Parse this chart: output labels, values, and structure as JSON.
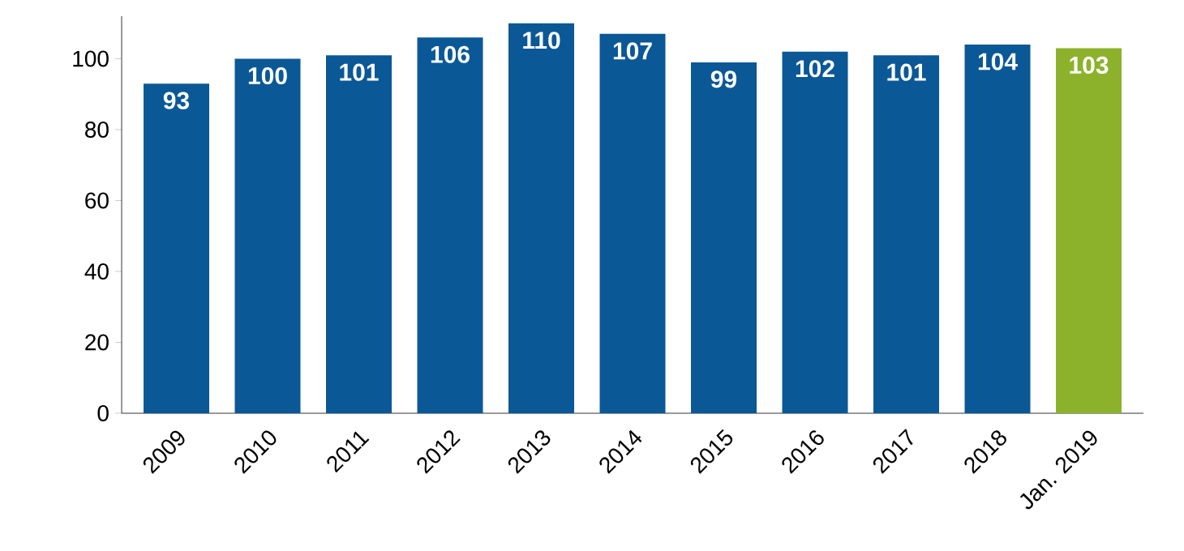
{
  "chart_data": {
    "type": "bar",
    "categories": [
      "2009",
      "2010",
      "2011",
      "2012",
      "2013",
      "2014",
      "2015",
      "2016",
      "2017",
      "2018",
      "Jan. 2019"
    ],
    "values": [
      93,
      100,
      101,
      106,
      110,
      107,
      99,
      102,
      101,
      104,
      103
    ],
    "colors": [
      "#0b5896",
      "#0b5896",
      "#0b5896",
      "#0b5896",
      "#0b5896",
      "#0b5896",
      "#0b5896",
      "#0b5896",
      "#0b5896",
      "#0b5896",
      "#8cb22b"
    ],
    "ylim": [
      0,
      112
    ],
    "yticks": [
      0,
      20,
      40,
      60,
      80,
      100
    ],
    "grid": false,
    "data_labels": true
  }
}
